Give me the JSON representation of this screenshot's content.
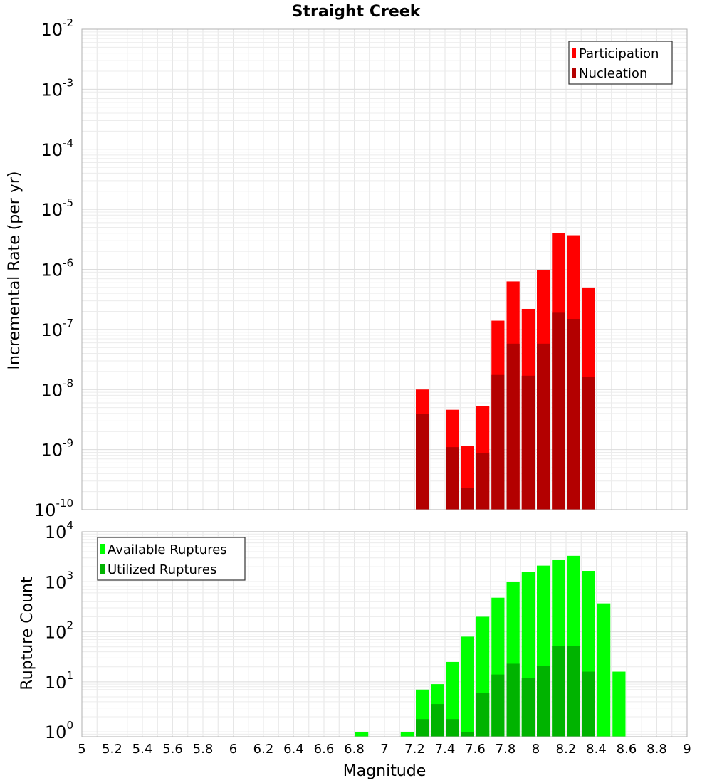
{
  "chart_data": [
    {
      "type": "bar",
      "title": "Straight Creek",
      "ylabel": "Incremental Rate (per yr)",
      "xlabel": "",
      "yscale": "log",
      "ylim": [
        1e-10,
        0.01
      ],
      "xlim": [
        5,
        9
      ],
      "bar_width": 0.1,
      "legend": {
        "placement": "top-right",
        "entries": [
          "Participation",
          "Nucleation"
        ]
      },
      "y_ticks": [
        {
          "base": "10",
          "exp": "-10"
        },
        {
          "base": "10",
          "exp": "-9"
        },
        {
          "base": "10",
          "exp": "-8"
        },
        {
          "base": "10",
          "exp": "-7"
        },
        {
          "base": "10",
          "exp": "-6"
        },
        {
          "base": "10",
          "exp": "-5"
        },
        {
          "base": "10",
          "exp": "-4"
        },
        {
          "base": "10",
          "exp": "-3"
        },
        {
          "base": "10",
          "exp": "-2"
        }
      ],
      "series": [
        {
          "name": "Participation",
          "color": "#ff0000",
          "x": [
            7.25,
            7.45,
            7.55,
            7.65,
            7.75,
            7.85,
            7.95,
            8.05,
            8.15,
            8.25,
            8.35
          ],
          "values": [
            1e-08,
            4.6e-09,
            1.15e-09,
            5.3e-09,
            1.4e-07,
            6.3e-07,
            2.2e-07,
            9.6e-07,
            4e-06,
            3.7e-06,
            5e-07
          ]
        },
        {
          "name": "Nucleation",
          "color": "#b30000",
          "x": [
            7.25,
            7.45,
            7.55,
            7.65,
            7.75,
            7.85,
            7.95,
            8.05,
            8.15,
            8.25,
            8.35
          ],
          "values": [
            3.9e-09,
            1.1e-09,
            2.3e-10,
            8.7e-10,
            1.75e-08,
            5.8e-08,
            1.7e-08,
            5.8e-08,
            1.9e-07,
            1.5e-07,
            1.6e-08
          ]
        }
      ]
    },
    {
      "type": "bar",
      "title": "",
      "ylabel": "Rupture Count",
      "xlabel": "Magnitude",
      "yscale": "log",
      "ylim": [
        0.8,
        10000
      ],
      "xlim": [
        5,
        9
      ],
      "bar_width": 0.1,
      "legend": {
        "placement": "top-left",
        "entries": [
          "Available Ruptures",
          "Utilized Ruptures"
        ]
      },
      "x_ticks": [
        "5",
        "5.2",
        "5.4",
        "5.6",
        "5.8",
        "6",
        "6.2",
        "6.4",
        "6.6",
        "6.8",
        "7",
        "7.2",
        "7.4",
        "7.6",
        "7.8",
        "8",
        "8.2",
        "8.4",
        "8.6",
        "8.8",
        "9"
      ],
      "y_ticks": [
        {
          "base": "10",
          "exp": "0"
        },
        {
          "base": "10",
          "exp": "1"
        },
        {
          "base": "10",
          "exp": "2"
        },
        {
          "base": "10",
          "exp": "3"
        },
        {
          "base": "10",
          "exp": "4"
        }
      ],
      "series": [
        {
          "name": "Available Ruptures",
          "color": "#00ff00",
          "x": [
            6.85,
            7.15,
            7.25,
            7.35,
            7.45,
            7.55,
            7.65,
            7.75,
            7.85,
            7.95,
            8.05,
            8.15,
            8.25,
            8.35,
            8.45,
            8.55
          ],
          "values": [
            1,
            1,
            7,
            9,
            25,
            80,
            200,
            480,
            1000,
            1550,
            2100,
            2700,
            3300,
            1650,
            370,
            16
          ]
        },
        {
          "name": "Utilized Ruptures",
          "color": "#00b300",
          "x": [
            7.25,
            7.35,
            7.45,
            7.55,
            7.65,
            7.75,
            7.85,
            7.95,
            8.05,
            8.15,
            8.25,
            8.35
          ],
          "values": [
            1.8,
            3.6,
            1.8,
            1,
            6,
            14,
            23,
            12,
            21,
            52,
            52,
            16
          ]
        }
      ]
    }
  ]
}
